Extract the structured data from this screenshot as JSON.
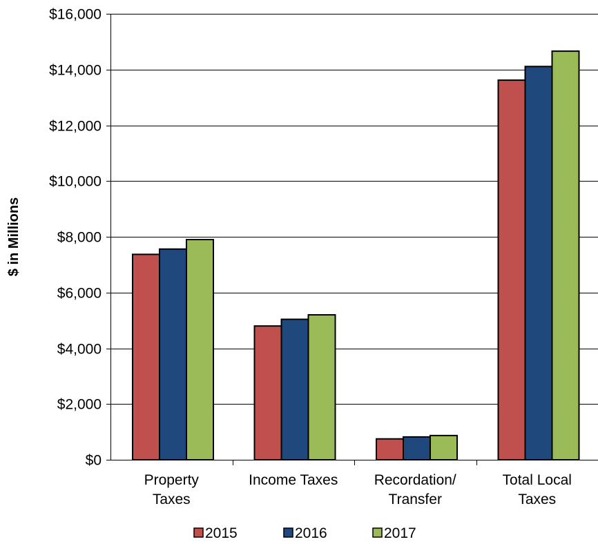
{
  "chart_data": {
    "type": "bar",
    "categories": [
      [
        "Property",
        "Taxes"
      ],
      [
        "Income Taxes"
      ],
      [
        "Recordation/",
        "Transfer"
      ],
      [
        "Total Local",
        "Taxes"
      ]
    ],
    "series": [
      {
        "name": "2015",
        "color": "#C0504D",
        "values": [
          7370,
          4800,
          750,
          13620
        ]
      },
      {
        "name": "2016",
        "color": "#1F497D",
        "values": [
          7560,
          5040,
          820,
          14110
        ]
      },
      {
        "name": "2017",
        "color": "#9BBB59",
        "values": [
          7900,
          5200,
          870,
          14660
        ]
      }
    ],
    "xlabel": "",
    "ylabel": "$ in Millions",
    "ylim": [
      0,
      16000
    ],
    "yticks": [
      0,
      2000,
      4000,
      6000,
      8000,
      10000,
      12000,
      14000,
      16000
    ],
    "ytick_labels": [
      "$0",
      "$2,000",
      "$4,000",
      "$6,000",
      "$8,000",
      "$10,000",
      "$12,000",
      "$14,000",
      "$16,000"
    ],
    "grid": true,
    "legend": "bottom"
  }
}
